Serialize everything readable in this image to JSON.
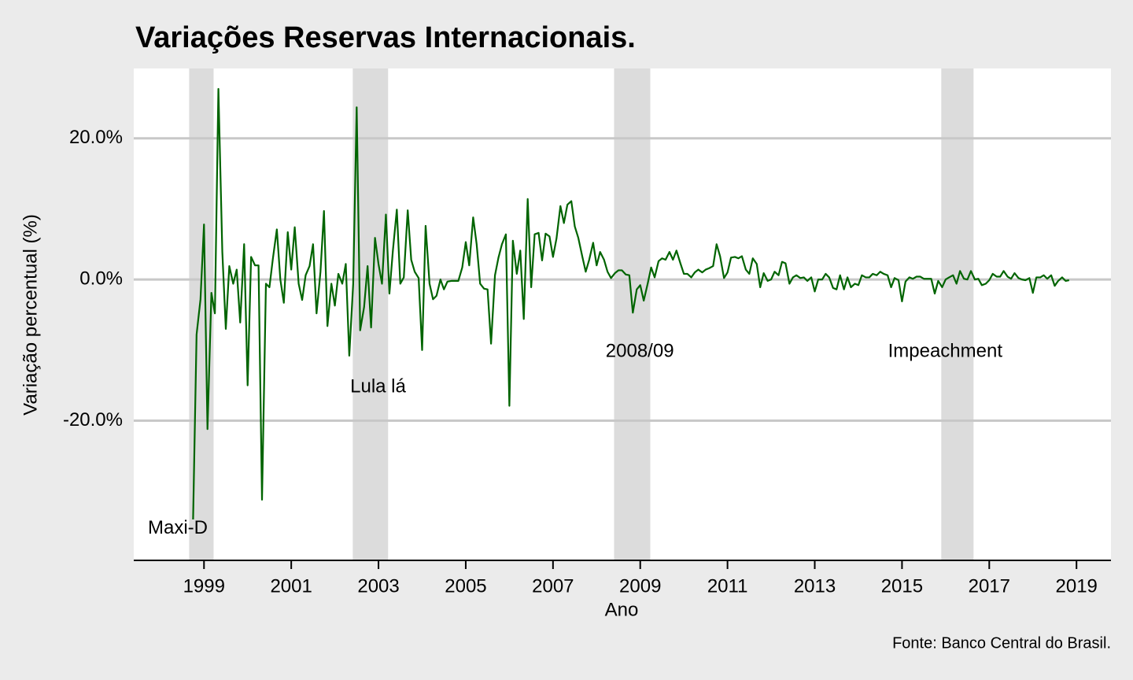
{
  "chart_data": {
    "type": "line",
    "title": "Variações Reservas Internacionais.",
    "x_label": "Ano",
    "y_label": "Variação percentual (%)",
    "caption": "Fonte: Banco Central do Brasil.",
    "color": "#006400",
    "grid": true,
    "xlim": [
      1997.39,
      2019.79
    ],
    "ylim": [
      -39.8,
      29.9
    ],
    "xticks": [
      1999,
      2001,
      2003,
      2005,
      2007,
      2009,
      2011,
      2013,
      2015,
      2017,
      2019
    ],
    "yticks": [
      {
        "value": -20,
        "label": "-20.0%"
      },
      {
        "value": 0,
        "label": "0.0%"
      },
      {
        "value": 20,
        "label": "20.0%"
      }
    ],
    "shaded_periods": [
      {
        "start": 1998.66,
        "end": 1999.22
      },
      {
        "start": 2002.41,
        "end": 2003.22
      },
      {
        "start": 2008.4,
        "end": 2009.23
      },
      {
        "start": 2015.9,
        "end": 2016.64
      }
    ],
    "annotations": [
      {
        "label": "Maxi-D",
        "x": 1998.4,
        "y": -35.3
      },
      {
        "label": "Lula lá",
        "x": 2002.99,
        "y": -15.3
      },
      {
        "label": "2008/09",
        "x": 2008.99,
        "y": -10.25
      },
      {
        "label": "Impeachment",
        "x": 2015.99,
        "y": -10.25
      }
    ],
    "x": [
      1998.75,
      1998.83,
      1998.92,
      1999.0,
      1999.08,
      1999.17,
      1999.25,
      1999.33,
      1999.42,
      1999.5,
      1999.58,
      1999.67,
      1999.75,
      1999.83,
      1999.92,
      2000.0,
      2000.08,
      2000.17,
      2000.25,
      2000.33,
      2000.42,
      2000.5,
      2000.58,
      2000.67,
      2000.75,
      2000.83,
      2000.92,
      2001.0,
      2001.08,
      2001.17,
      2001.25,
      2001.33,
      2001.42,
      2001.5,
      2001.58,
      2001.67,
      2001.75,
      2001.83,
      2001.92,
      2002.0,
      2002.08,
      2002.17,
      2002.25,
      2002.33,
      2002.42,
      2002.5,
      2002.58,
      2002.67,
      2002.75,
      2002.83,
      2002.92,
      2003.0,
      2003.08,
      2003.17,
      2003.25,
      2003.33,
      2003.42,
      2003.5,
      2003.58,
      2003.67,
      2003.75,
      2003.83,
      2003.92,
      2004.0,
      2004.08,
      2004.17,
      2004.25,
      2004.33,
      2004.42,
      2004.5,
      2004.58,
      2004.67,
      2004.75,
      2004.83,
      2004.92,
      2005.0,
      2005.08,
      2005.17,
      2005.25,
      2005.33,
      2005.42,
      2005.5,
      2005.58,
      2005.67,
      2005.75,
      2005.83,
      2005.92,
      2006.0,
      2006.08,
      2006.17,
      2006.25,
      2006.33,
      2006.42,
      2006.5,
      2006.58,
      2006.67,
      2006.75,
      2006.83,
      2006.92,
      2007.0,
      2007.08,
      2007.17,
      2007.25,
      2007.33,
      2007.42,
      2007.5,
      2007.58,
      2007.67,
      2007.75,
      2007.83,
      2007.92,
      2008.0,
      2008.08,
      2008.17,
      2008.25,
      2008.33,
      2008.42,
      2008.5,
      2008.58,
      2008.67,
      2008.75,
      2008.83,
      2008.92,
      2009.0,
      2009.08,
      2009.17,
      2009.25,
      2009.33,
      2009.42,
      2009.5,
      2009.58,
      2009.67,
      2009.75,
      2009.83,
      2009.92,
      2010.0,
      2010.08,
      2010.17,
      2010.25,
      2010.33,
      2010.42,
      2010.5,
      2010.58,
      2010.67,
      2010.75,
      2010.83,
      2010.92,
      2011.0,
      2011.08,
      2011.17,
      2011.25,
      2011.33,
      2011.42,
      2011.5,
      2011.58,
      2011.67,
      2011.75,
      2011.83,
      2011.92,
      2012.0,
      2012.08,
      2012.17,
      2012.25,
      2012.33,
      2012.42,
      2012.5,
      2012.58,
      2012.67,
      2012.75,
      2012.83,
      2012.92,
      2013.0,
      2013.08,
      2013.17,
      2013.25,
      2013.33,
      2013.42,
      2013.5,
      2013.58,
      2013.67,
      2013.75,
      2013.83,
      2013.92,
      2014.0,
      2014.08,
      2014.17,
      2014.25,
      2014.33,
      2014.42,
      2014.5,
      2014.58,
      2014.67,
      2014.75,
      2014.83,
      2014.92,
      2015.0,
      2015.08,
      2015.17,
      2015.25,
      2015.33,
      2015.42,
      2015.5,
      2015.58,
      2015.67,
      2015.75,
      2015.83,
      2015.92,
      2016.0,
      2016.08,
      2016.17,
      2016.25,
      2016.33,
      2016.42,
      2016.5,
      2016.58,
      2016.67,
      2016.75,
      2016.83,
      2016.92,
      2017.0,
      2017.08,
      2017.17,
      2017.25,
      2017.33,
      2017.42,
      2017.5,
      2017.58,
      2017.67,
      2017.75,
      2017.83,
      2017.92,
      2018.0,
      2018.08,
      2018.17,
      2018.25,
      2018.33,
      2018.42,
      2018.5,
      2018.58,
      2018.67,
      2018.75,
      2018.83
    ],
    "values": [
      -34,
      -7.8,
      -2.8,
      7.8,
      -21.2,
      -1.9,
      -4.8,
      27.0,
      3.9,
      -7.0,
      1.9,
      -0.6,
      1.4,
      -6.1,
      5.0,
      -15.0,
      3.2,
      2.0,
      2.0,
      -31.2,
      -0.6,
      -1.1,
      3.0,
      7.1,
      0,
      -3.3,
      6.7,
      1.4,
      7.4,
      -0.6,
      -2.9,
      0.6,
      1.9,
      5.0,
      -4.8,
      1.1,
      9.7,
      -6.6,
      -0.6,
      -3.7,
      0.8,
      -0.6,
      2.2,
      -10.8,
      -0.6,
      24.4,
      -7.2,
      -3.9,
      1.9,
      -6.8,
      5.9,
      2.2,
      -0.6,
      9.2,
      -2.0,
      4.1,
      9.9,
      -0.6,
      0.3,
      9.8,
      2.8,
      1.1,
      0.2,
      -10.0,
      7.6,
      -0.6,
      -2.8,
      -2.3,
      0,
      -1.4,
      -0.3,
      -0.2,
      -0.2,
      -0.2,
      1.7,
      5.3,
      2.0,
      8.8,
      5.0,
      -0.6,
      -1.3,
      -1.4,
      -9.1,
      0.6,
      3.1,
      5.0,
      6.4,
      -17.9,
      5.5,
      0.8,
      4.1,
      -5.6,
      11.4,
      -1.1,
      6.4,
      6.6,
      2.7,
      6.5,
      6.1,
      3.2,
      5.8,
      10.4,
      8.0,
      10.6,
      11.1,
      7.5,
      5.9,
      3.3,
      1.1,
      2.8,
      5.2,
      2.0,
      3.9,
      2.8,
      1.1,
      0.2,
      0.9,
      1.3,
      1.3,
      0.7,
      0.6,
      -4.7,
      -1.4,
      -0.8,
      -3.0,
      -0.6,
      1.7,
      0.3,
      2.6,
      3.0,
      2.8,
      3.9,
      2.8,
      4.1,
      2.3,
      0.8,
      0.8,
      0.3,
      1.0,
      1.4,
      1.0,
      1.4,
      1.6,
      1.9,
      5.0,
      3.3,
      0.2,
      1.0,
      3.1,
      3.2,
      3.0,
      3.3,
      1.4,
      0.8,
      3.0,
      2.2,
      -1.1,
      0.9,
      -0.2,
      0,
      1.1,
      0.6,
      2.5,
      2.3,
      -0.6,
      0.3,
      0.6,
      0.2,
      0.3,
      -0.2,
      0.3,
      -1.7,
      0,
      0,
      0.8,
      0.3,
      -1.2,
      -1.4,
      0.6,
      -1.4,
      0.3,
      -1.1,
      -0.6,
      -0.8,
      0.6,
      0.3,
      0.3,
      0.8,
      0.6,
      1.1,
      0.8,
      0.6,
      -1.1,
      0.2,
      -0.1,
      -3.1,
      -0.3,
      0.3,
      0.1,
      0.4,
      0.4,
      0.1,
      0.1,
      0.1,
      -2.0,
      -0.2,
      -1.1,
      0,
      0.3,
      0.6,
      -0.6,
      1.2,
      0.1,
      0,
      1.2,
      0,
      0.1,
      -0.8,
      -0.6,
      -0.1,
      0.8,
      0.4,
      0.4,
      1.2,
      0.4,
      0.1,
      0.9,
      0.2,
      0,
      -0.1,
      0.2,
      -1.9,
      0.3,
      0.3,
      0.6,
      0.1,
      0.6,
      -0.9,
      -0.2,
      0.3,
      -0.2,
      -0.1
    ]
  }
}
